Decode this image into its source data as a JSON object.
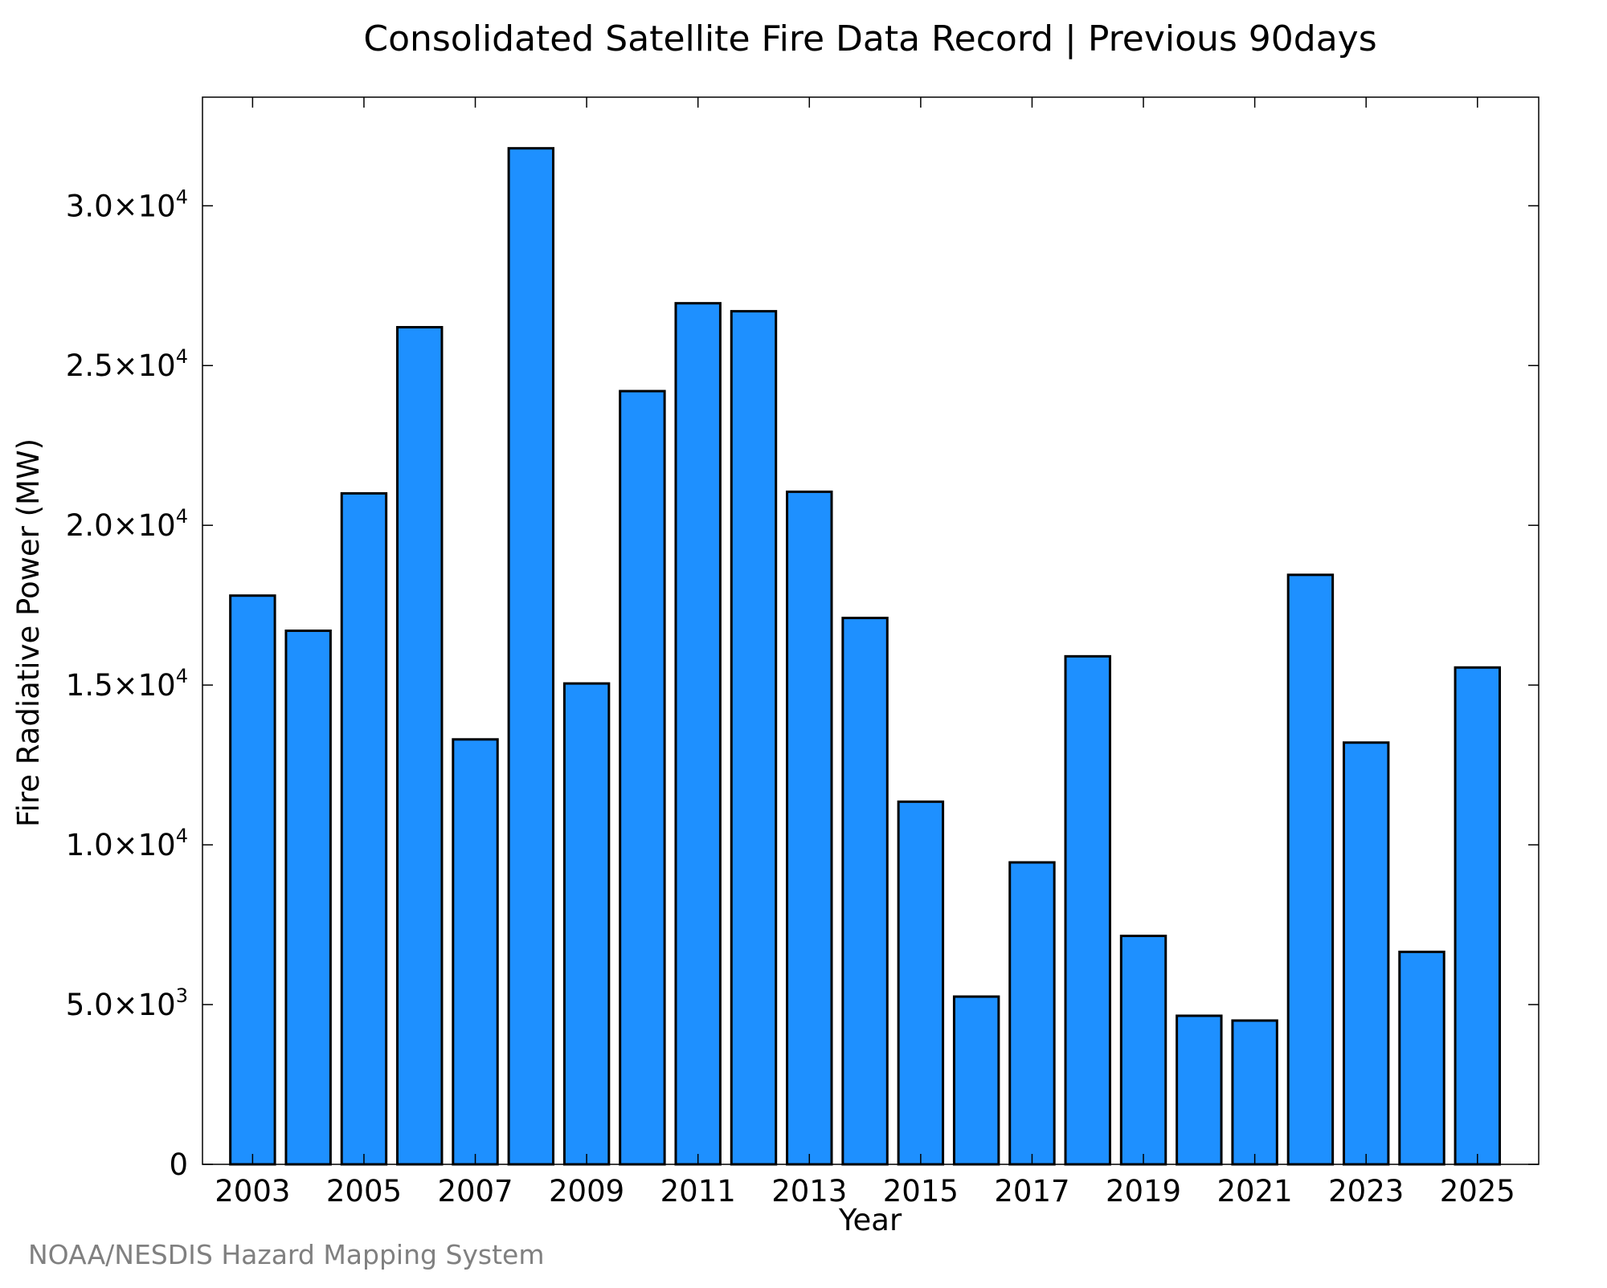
{
  "chart_data": {
    "type": "bar",
    "title": "Consolidated Satellite Fire Data Record | Previous 90days",
    "xlabel": "Year",
    "ylabel": "Fire Radiative Power (MW)",
    "categories": [
      "2003",
      "2004",
      "2005",
      "2006",
      "2007",
      "2008",
      "2009",
      "2010",
      "2011",
      "2012",
      "2013",
      "2014",
      "2015",
      "2016",
      "2017",
      "2018",
      "2019",
      "2020",
      "2021",
      "2022",
      "2023",
      "2024",
      "2025"
    ],
    "values": [
      17800,
      16700,
      21000,
      26200,
      13300,
      31800,
      15050,
      24200,
      26950,
      26700,
      21050,
      17100,
      11350,
      5250,
      9450,
      15900,
      7150,
      4650,
      4500,
      18450,
      13200,
      6650,
      15550
    ],
    "x_tick_labels": [
      "2003",
      "2005",
      "2007",
      "2009",
      "2011",
      "2013",
      "2015",
      "2017",
      "2019",
      "2021",
      "2023",
      "2025"
    ],
    "y_ticks": [
      {
        "value": 0,
        "mantissa": "0",
        "exponent": ""
      },
      {
        "value": 5000,
        "mantissa": "5.0×10",
        "exponent": "3"
      },
      {
        "value": 10000,
        "mantissa": "1.0×10",
        "exponent": "4"
      },
      {
        "value": 15000,
        "mantissa": "1.5×10",
        "exponent": "4"
      },
      {
        "value": 20000,
        "mantissa": "2.0×10",
        "exponent": "4"
      },
      {
        "value": 25000,
        "mantissa": "2.5×10",
        "exponent": "4"
      },
      {
        "value": 30000,
        "mantissa": "3.0×10",
        "exponent": "4"
      }
    ],
    "ylim": [
      0,
      33400
    ],
    "xlim": [
      2002.1,
      2026.1
    ],
    "bar_color": "#1e90ff",
    "bar_edge_color": "#000000",
    "grid": false,
    "legend": "none"
  },
  "credit": "NOAA/NESDIS Hazard Mapping System"
}
